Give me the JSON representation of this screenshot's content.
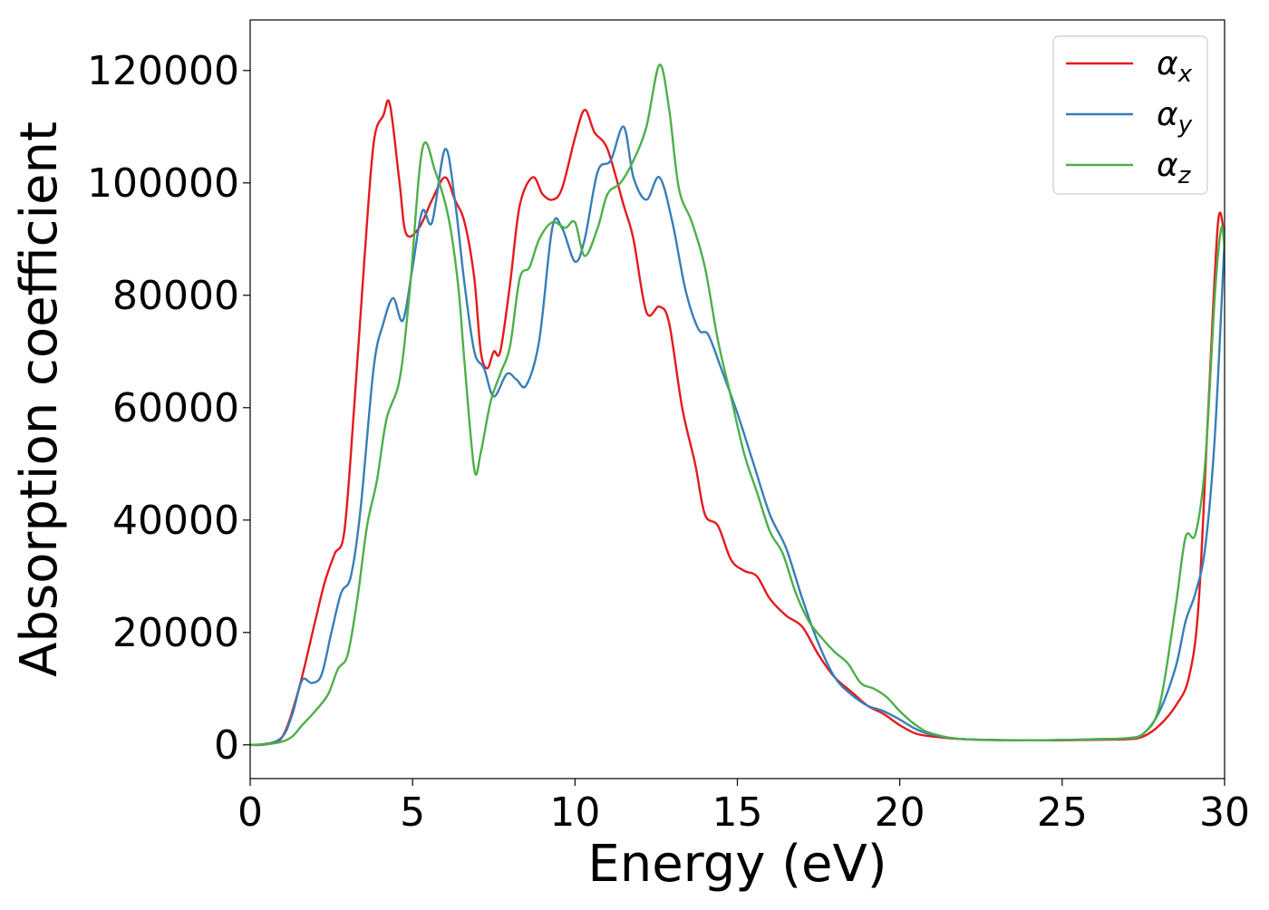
{
  "chart_data": {
    "type": "line",
    "title": "",
    "xlabel": "Energy (eV)",
    "ylabel": "Absorption coefficient",
    "xlim": [
      0,
      30
    ],
    "ylim": [
      -6000,
      129000
    ],
    "xticks": [
      0,
      5,
      10,
      15,
      20,
      25,
      30
    ],
    "yticks": [
      0,
      20000,
      40000,
      60000,
      80000,
      100000,
      120000
    ],
    "grid": false,
    "legend_position": "top-right",
    "series": [
      {
        "name": "αx",
        "color": "#e41a1c",
        "points": [
          [
            0,
            0
          ],
          [
            0.5,
            200
          ],
          [
            1,
            1500
          ],
          [
            1.5,
            10000
          ],
          [
            2,
            22000
          ],
          [
            2.3,
            29000
          ],
          [
            2.6,
            34000
          ],
          [
            2.9,
            38000
          ],
          [
            3.2,
            60000
          ],
          [
            3.5,
            85000
          ],
          [
            3.8,
            107000
          ],
          [
            4.1,
            112000
          ],
          [
            4.3,
            114000
          ],
          [
            4.6,
            100000
          ],
          [
            4.8,
            91000
          ],
          [
            5.2,
            92000
          ],
          [
            5.6,
            97000
          ],
          [
            6.0,
            101000
          ],
          [
            6.3,
            97000
          ],
          [
            6.6,
            93000
          ],
          [
            6.9,
            83000
          ],
          [
            7.1,
            70000
          ],
          [
            7.3,
            67000
          ],
          [
            7.5,
            70000
          ],
          [
            7.7,
            70000
          ],
          [
            8.0,
            82000
          ],
          [
            8.3,
            96000
          ],
          [
            8.7,
            101000
          ],
          [
            9.0,
            98000
          ],
          [
            9.3,
            97000
          ],
          [
            9.6,
            99000
          ],
          [
            10.0,
            108000
          ],
          [
            10.3,
            113000
          ],
          [
            10.6,
            109000
          ],
          [
            11.0,
            106000
          ],
          [
            11.5,
            96000
          ],
          [
            11.8,
            90000
          ],
          [
            12.2,
            77000
          ],
          [
            12.6,
            78000
          ],
          [
            12.9,
            75000
          ],
          [
            13.3,
            60000
          ],
          [
            13.7,
            50000
          ],
          [
            14.0,
            41000
          ],
          [
            14.4,
            39000
          ],
          [
            14.8,
            33000
          ],
          [
            15.2,
            31000
          ],
          [
            15.6,
            30000
          ],
          [
            16.0,
            26000
          ],
          [
            16.5,
            23000
          ],
          [
            17.0,
            21000
          ],
          [
            17.5,
            16000
          ],
          [
            18.0,
            12000
          ],
          [
            18.5,
            9500
          ],
          [
            19.0,
            7000
          ],
          [
            19.5,
            5500
          ],
          [
            20.0,
            3500
          ],
          [
            20.5,
            2000
          ],
          [
            21.0,
            1500
          ],
          [
            22.0,
            1000
          ],
          [
            24.0,
            800
          ],
          [
            26.0,
            900
          ],
          [
            27.0,
            1000
          ],
          [
            27.5,
            1500
          ],
          [
            28.0,
            3500
          ],
          [
            28.5,
            7000
          ],
          [
            28.9,
            12000
          ],
          [
            29.2,
            25000
          ],
          [
            29.5,
            60000
          ],
          [
            29.8,
            93000
          ],
          [
            30.0,
            90000
          ]
        ]
      },
      {
        "name": "αy",
        "color": "#377eb8",
        "points": [
          [
            0,
            0
          ],
          [
            0.5,
            100
          ],
          [
            1,
            1500
          ],
          [
            1.3,
            5500
          ],
          [
            1.6,
            11500
          ],
          [
            1.9,
            11000
          ],
          [
            2.2,
            12500
          ],
          [
            2.5,
            20000
          ],
          [
            2.8,
            27000
          ],
          [
            3.1,
            30000
          ],
          [
            3.4,
            42000
          ],
          [
            3.8,
            67000
          ],
          [
            4.1,
            75000
          ],
          [
            4.4,
            79500
          ],
          [
            4.7,
            75500
          ],
          [
            5.0,
            85000
          ],
          [
            5.3,
            95000
          ],
          [
            5.6,
            93000
          ],
          [
            6.0,
            106000
          ],
          [
            6.3,
            97000
          ],
          [
            6.6,
            82000
          ],
          [
            6.9,
            70000
          ],
          [
            7.2,
            67000
          ],
          [
            7.5,
            62000
          ],
          [
            7.9,
            66000
          ],
          [
            8.2,
            65000
          ],
          [
            8.5,
            64000
          ],
          [
            8.9,
            72000
          ],
          [
            9.3,
            92000
          ],
          [
            9.6,
            92000
          ],
          [
            10.0,
            86000
          ],
          [
            10.3,
            90000
          ],
          [
            10.7,
            102000
          ],
          [
            11.1,
            104000
          ],
          [
            11.5,
            110000
          ],
          [
            11.8,
            101000
          ],
          [
            12.2,
            97000
          ],
          [
            12.6,
            101000
          ],
          [
            13.0,
            93000
          ],
          [
            13.4,
            81000
          ],
          [
            13.8,
            74000
          ],
          [
            14.1,
            73000
          ],
          [
            14.5,
            67000
          ],
          [
            15.0,
            59000
          ],
          [
            15.5,
            50000
          ],
          [
            16.0,
            41000
          ],
          [
            16.5,
            35000
          ],
          [
            17.0,
            26000
          ],
          [
            17.5,
            18000
          ],
          [
            18.0,
            12000
          ],
          [
            18.5,
            9000
          ],
          [
            19.0,
            7000
          ],
          [
            19.5,
            6000
          ],
          [
            20.0,
            4500
          ],
          [
            20.5,
            2800
          ],
          [
            21.0,
            1800
          ],
          [
            22.0,
            1000
          ],
          [
            24.0,
            800
          ],
          [
            26.0,
            1000
          ],
          [
            27.0,
            1200
          ],
          [
            27.5,
            2000
          ],
          [
            28.0,
            6000
          ],
          [
            28.5,
            14000
          ],
          [
            28.8,
            22000
          ],
          [
            29.1,
            27000
          ],
          [
            29.4,
            35000
          ],
          [
            29.7,
            55000
          ],
          [
            30.0,
            90000
          ]
        ]
      },
      {
        "name": "αz",
        "color": "#4daf4a",
        "points": [
          [
            0,
            0
          ],
          [
            0.5,
            100
          ],
          [
            1,
            600
          ],
          [
            1.3,
            1500
          ],
          [
            1.6,
            3500
          ],
          [
            2.0,
            6000
          ],
          [
            2.4,
            9000
          ],
          [
            2.7,
            13500
          ],
          [
            3.0,
            16000
          ],
          [
            3.3,
            26000
          ],
          [
            3.6,
            39000
          ],
          [
            3.9,
            47000
          ],
          [
            4.2,
            58000
          ],
          [
            4.6,
            65000
          ],
          [
            4.9,
            80000
          ],
          [
            5.3,
            106000
          ],
          [
            5.7,
            102000
          ],
          [
            6.1,
            94000
          ],
          [
            6.4,
            82000
          ],
          [
            6.6,
            68000
          ],
          [
            6.9,
            49000
          ],
          [
            7.1,
            52000
          ],
          [
            7.4,
            61000
          ],
          [
            7.7,
            66000
          ],
          [
            8.0,
            71000
          ],
          [
            8.3,
            83000
          ],
          [
            8.6,
            85000
          ],
          [
            8.9,
            90000
          ],
          [
            9.3,
            93000
          ],
          [
            9.7,
            92000
          ],
          [
            10.0,
            93000
          ],
          [
            10.3,
            87000
          ],
          [
            10.7,
            92000
          ],
          [
            11.0,
            98000
          ],
          [
            11.4,
            100000
          ],
          [
            11.8,
            104000
          ],
          [
            12.2,
            110000
          ],
          [
            12.6,
            121000
          ],
          [
            12.9,
            113000
          ],
          [
            13.2,
            99000
          ],
          [
            13.6,
            93000
          ],
          [
            14.0,
            85000
          ],
          [
            14.4,
            72000
          ],
          [
            14.8,
            62000
          ],
          [
            15.2,
            52000
          ],
          [
            15.6,
            45000
          ],
          [
            16.0,
            38000
          ],
          [
            16.4,
            34000
          ],
          [
            16.8,
            27000
          ],
          [
            17.2,
            22000
          ],
          [
            17.6,
            19000
          ],
          [
            18.0,
            16500
          ],
          [
            18.4,
            14500
          ],
          [
            18.8,
            11000
          ],
          [
            19.2,
            10000
          ],
          [
            19.6,
            8500
          ],
          [
            20.0,
            6000
          ],
          [
            20.5,
            3500
          ],
          [
            21.0,
            2000
          ],
          [
            22.0,
            1000
          ],
          [
            24.0,
            800
          ],
          [
            26.0,
            1000
          ],
          [
            27.0,
            1200
          ],
          [
            27.5,
            2000
          ],
          [
            28.0,
            7000
          ],
          [
            28.5,
            25000
          ],
          [
            28.8,
            37000
          ],
          [
            29.1,
            37500
          ],
          [
            29.4,
            50000
          ],
          [
            29.7,
            80000
          ],
          [
            29.9,
            92000
          ],
          [
            30.0,
            88000
          ]
        ]
      }
    ]
  }
}
